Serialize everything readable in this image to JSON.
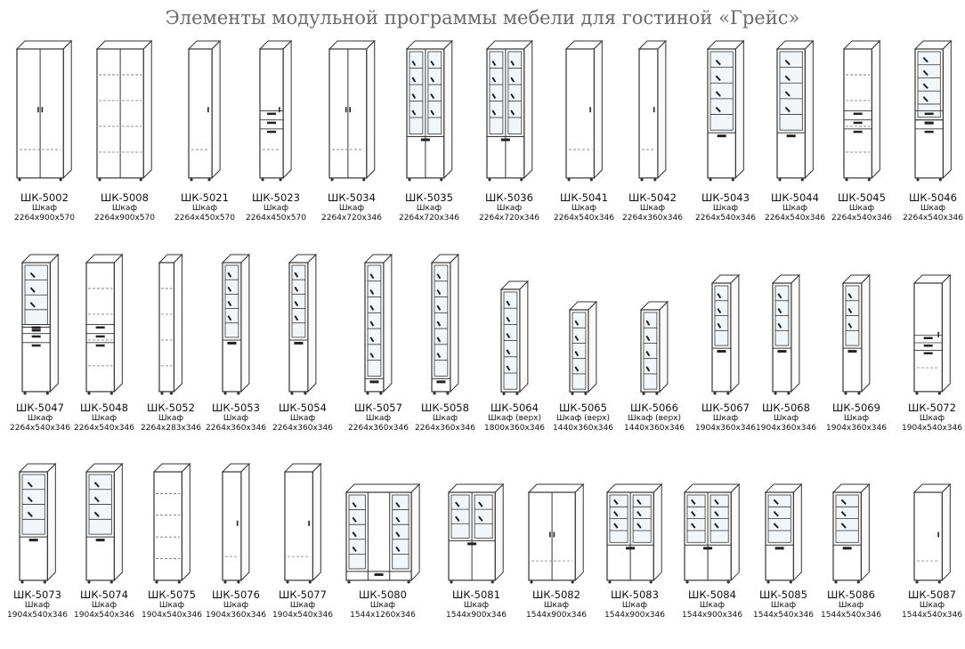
{
  "title": "Элементы модульной программы мебели для гостиной «Грейс»",
  "rows": [
    [
      {
        "code": "ШК-5002",
        "kind": "Шкаф",
        "dims": "2264x900x570"
      },
      {
        "code": "ШК-5008",
        "kind": "Шкаф",
        "dims": "2264x900x570"
      },
      {
        "code": "ШК-5021",
        "kind": "Шкаф",
        "dims": "2264x450x570"
      },
      {
        "code": "ШК-5023",
        "kind": "Шкаф",
        "dims": "2264x450x570"
      },
      {
        "code": "ШК-5034",
        "kind": "Шкаф",
        "dims": "2264x720x346"
      },
      {
        "code": "ШК-5035",
        "kind": "Шкаф",
        "dims": "2264x720x346"
      },
      {
        "code": "ШК-5036",
        "kind": "Шкаф",
        "dims": "2264x720x346"
      },
      {
        "code": "ШК-5041",
        "kind": "Шкаф",
        "dims": "2264x540x346"
      },
      {
        "code": "ШК-5042",
        "kind": "Шкаф",
        "dims": "2264x360x346"
      },
      {
        "code": "ШК-5043",
        "kind": "Шкаф",
        "dims": "2264x540x346"
      },
      {
        "code": "ШК-5044",
        "kind": "Шкаф",
        "dims": "2264x540x346"
      },
      {
        "code": "ШК-5045",
        "kind": "Шкаф",
        "dims": "2264x540x346"
      },
      {
        "code": "ШК-5046",
        "kind": "Шкаф",
        "dims": "2264x540x346"
      }
    ],
    [
      {
        "code": "ШК-5047",
        "kind": "Шкаф",
        "dims": "2264x540x346"
      },
      {
        "code": "ШК-5048",
        "kind": "Шкаф",
        "dims": "2264x540x346"
      },
      {
        "code": "ШК-5052",
        "kind": "Шкаф",
        "dims": "2264x283x346"
      },
      {
        "code": "ШК-5053",
        "kind": "Шкаф",
        "dims": "2264x360x346"
      },
      {
        "code": "ШК-5054",
        "kind": "Шкаф",
        "dims": "2264x360x346"
      },
      {
        "code": "ШК-5057",
        "kind": "Шкаф",
        "dims": "2264x360x346"
      },
      {
        "code": "ШК-5058",
        "kind": "Шкаф",
        "dims": "2264x360x346"
      },
      {
        "code": "ШК-5064",
        "kind": "Шкаф (верх)",
        "dims": "1800x360x346"
      },
      {
        "code": "ШК-5065",
        "kind": "Шкаф (верх)",
        "dims": "1440x360x346"
      },
      {
        "code": "ШК-5066",
        "kind": "Шкаф (верх)",
        "dims": "1440x360x346"
      },
      {
        "code": "ШК-5067",
        "kind": "Шкаф",
        "dims": "1904x360x346"
      },
      {
        "code": "ШК-5068",
        "kind": "Шкаф",
        "dims": "1904x360x346"
      },
      {
        "code": "ШК-5069",
        "kind": "Шкаф",
        "dims": "1904x360x346"
      },
      {
        "code": "ШК-5072",
        "kind": "Шкаф",
        "dims": "1904x540x346"
      }
    ],
    [
      {
        "code": "ШК-5073",
        "kind": "Шкаф",
        "dims": "1904x540x346"
      },
      {
        "code": "ШК-5074",
        "kind": "Шкаф",
        "dims": "1904x540x346"
      },
      {
        "code": "ШК-5075",
        "kind": "Шкаф",
        "dims": "1904x540x346"
      },
      {
        "code": "ШК-5076",
        "kind": "Шкаф",
        "dims": "1904x360x346"
      },
      {
        "code": "ШК-5077",
        "kind": "Шкаф",
        "dims": "1904x540x346"
      },
      {
        "code": "ШК-5080",
        "kind": "Шкаф",
        "dims": "1544x1260x346"
      },
      {
        "code": "ШК-5081",
        "kind": "Шкаф",
        "dims": "1544x900x346"
      },
      {
        "code": "ШК-5082",
        "kind": "Шкаф",
        "dims": "1544x900x346"
      },
      {
        "code": "ШК-5083",
        "kind": "Шкаф",
        "dims": "1544x900x346"
      },
      {
        "code": "ШК-5084",
        "kind": "Шкаф",
        "dims": "1544x900x346"
      },
      {
        "code": "ШК-5085",
        "kind": "Шкаф",
        "dims": "1544x540x346"
      },
      {
        "code": "ШК-5086",
        "kind": "Шкаф",
        "dims": "1544x540x346"
      },
      {
        "code": "ШК-5087",
        "kind": "Шкаф",
        "dims": "1544x540x346"
      }
    ]
  ]
}
